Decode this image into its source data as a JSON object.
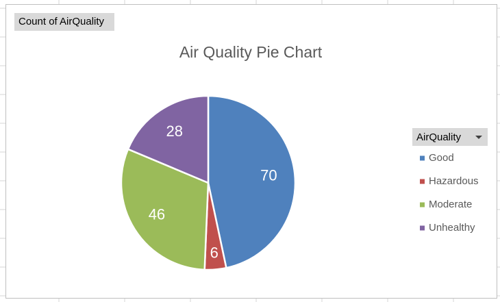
{
  "chart_data": {
    "type": "pie",
    "title": "Air Quality Pie Chart",
    "field_button": "Count of AirQuality",
    "legend_title": "AirQuality",
    "legend_position": "right",
    "categories": [
      "Good",
      "Hazardous",
      "Moderate",
      "Unhealthy"
    ],
    "values": [
      70,
      6,
      46,
      28
    ],
    "colors": [
      "#4f81bd",
      "#c0504d",
      "#9bbb59",
      "#8064a2"
    ]
  }
}
